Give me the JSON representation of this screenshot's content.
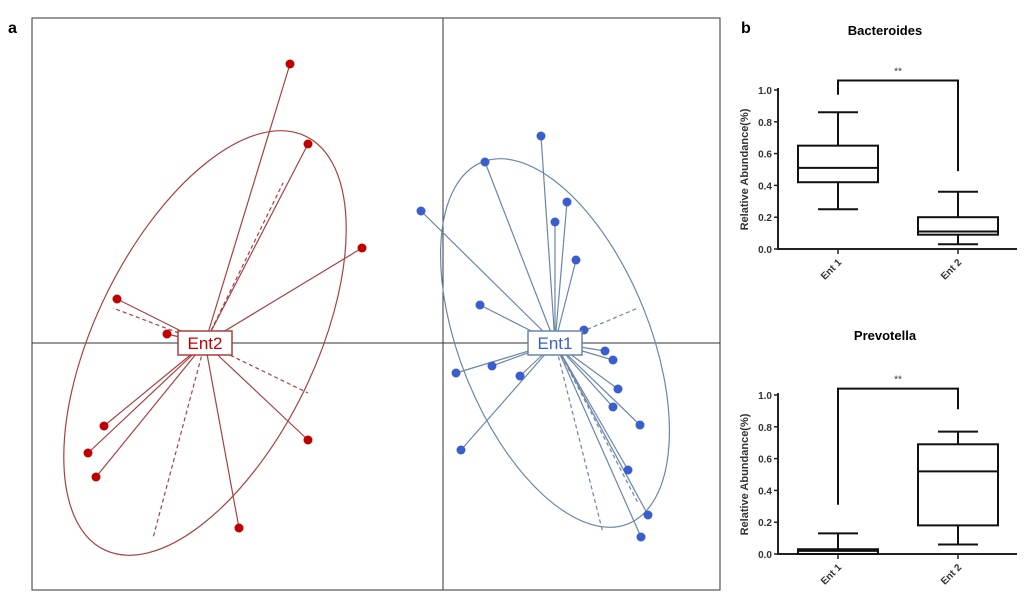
{
  "panel_labels": {
    "a": "a",
    "b": "b"
  },
  "chart_data": [
    {
      "type": "scatter",
      "title": "",
      "panel": "a",
      "groups": [
        {
          "name": "Ent2",
          "color": "#c00000",
          "line_color": "#a84040",
          "center": [
            -2.38,
            0
          ],
          "ellipse": {
            "rx": 2.3,
            "ry": 1.1,
            "angle": 26
          },
          "points": [
            [
              -1.53,
              2.79
            ],
            [
              -1.35,
              1.99
            ],
            [
              -0.81,
              0.95
            ],
            [
              -3.26,
              0.44
            ],
            [
              -2.76,
              0.09
            ],
            [
              -3.39,
              -0.83
            ],
            [
              -3.55,
              -1.1
            ],
            [
              -3.47,
              -1.34
            ],
            [
              -1.35,
              -0.97
            ],
            [
              -2.04,
              -1.85
            ]
          ]
        },
        {
          "name": "Ent1",
          "color": "#3a5fcd",
          "line_color": "#6a86a8",
          "center": [
            1.12,
            0
          ],
          "ellipse": {
            "rx": 1.95,
            "ry": 0.95,
            "angle": -22
          },
          "points": [
            [
              -0.22,
              1.32
            ],
            [
              0.42,
              1.81
            ],
            [
              0.98,
              2.07
            ],
            [
              1.24,
              1.41
            ],
            [
              1.12,
              1.21
            ],
            [
              1.33,
              0.83
            ],
            [
              0.37,
              0.38
            ],
            [
              1.41,
              0.13
            ],
            [
              1.62,
              -0.08
            ],
            [
              1.7,
              -0.17
            ],
            [
              0.13,
              -0.3
            ],
            [
              0.49,
              -0.23
            ],
            [
              0.77,
              -0.33
            ],
            [
              1.75,
              -0.46
            ],
            [
              1.7,
              -0.64
            ],
            [
              1.97,
              -0.82
            ],
            [
              0.18,
              -1.07
            ],
            [
              1.85,
              -1.27
            ],
            [
              2.05,
              -1.72
            ],
            [
              1.98,
              -1.94
            ]
          ]
        }
      ]
    },
    {
      "type": "box",
      "title": "Bacteroides",
      "ylabel": "Relative Abundance(%)",
      "ylim": [
        0,
        1.0
      ],
      "yticks": [
        "0.0",
        "0.2",
        "0.4",
        "0.6",
        "0.8",
        "1.0"
      ],
      "categories": [
        "Ent1",
        "Ent2"
      ],
      "boxes": [
        {
          "min": 0.25,
          "q1": 0.42,
          "median": 0.51,
          "q3": 0.65,
          "max": 0.86
        },
        {
          "min": 0.03,
          "q1": 0.09,
          "median": 0.11,
          "q3": 0.2,
          "max": 0.36
        }
      ],
      "significance": "**",
      "bracket": {
        "top": 1.06,
        "left_end": 0.97,
        "right_end": 0.49
      }
    },
    {
      "type": "box",
      "title": "Prevotella",
      "ylabel": "Relative Abundance(%)",
      "ylim": [
        0,
        1.0
      ],
      "yticks": [
        "0.0",
        "0.2",
        "0.4",
        "0.6",
        "0.8",
        "1.0"
      ],
      "categories": [
        "Ent1",
        "Ent2"
      ],
      "boxes": [
        {
          "min": 0.0,
          "q1": 0.0,
          "median": 0.02,
          "q3": 0.03,
          "max": 0.13
        },
        {
          "min": 0.06,
          "q1": 0.18,
          "median": 0.52,
          "q3": 0.69,
          "max": 0.77
        }
      ],
      "significance": "**",
      "bracket": {
        "top": 1.04,
        "left_end": 0.31,
        "right_end": 0.91
      }
    }
  ]
}
